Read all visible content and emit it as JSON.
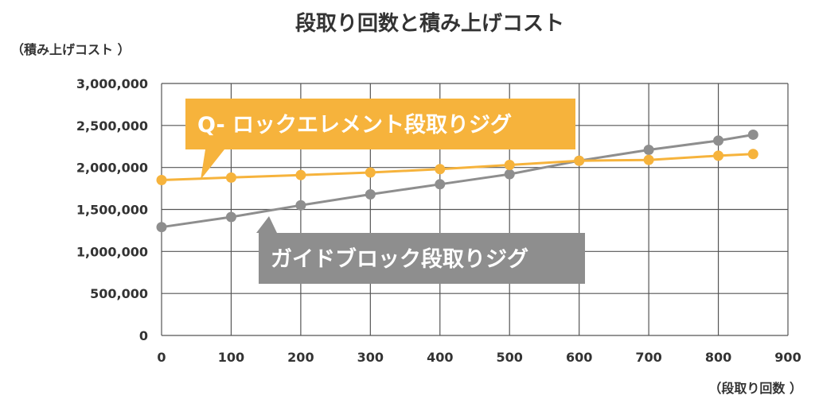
{
  "chart_data": {
    "type": "line",
    "title": "段取り回数と積み上げコスト",
    "ylabel": "（積み上げコスト ）",
    "xlabel": "（段取り回数 ）",
    "xlim": [
      0,
      900
    ],
    "ylim": [
      0,
      3000000
    ],
    "x_ticks": [
      "0",
      "100",
      "200",
      "300",
      "400",
      "500",
      "600",
      "700",
      "800",
      "900"
    ],
    "y_ticks": [
      "0",
      "500,000",
      "1,000,000",
      "1,500,000",
      "2,000,000",
      "2,500,000",
      "3,000,000"
    ],
    "grid": true,
    "series": [
      {
        "name": "Q- ロックエレメント段取りジグ",
        "color": "#f6b33c",
        "x": [
          0,
          100,
          200,
          300,
          400,
          500,
          600,
          700,
          800,
          850
        ],
        "values": [
          1850000,
          1880000,
          1910000,
          1940000,
          1980000,
          2030000,
          2080000,
          2090000,
          2140000,
          2160000
        ]
      },
      {
        "name": "ガイドブロック段取りジグ",
        "color": "#8e8e8e",
        "x": [
          0,
          100,
          200,
          300,
          400,
          500,
          600,
          700,
          800,
          850
        ],
        "values": [
          1290000,
          1410000,
          1550000,
          1680000,
          1800000,
          1920000,
          2080000,
          2210000,
          2320000,
          2390000
        ]
      }
    ]
  }
}
